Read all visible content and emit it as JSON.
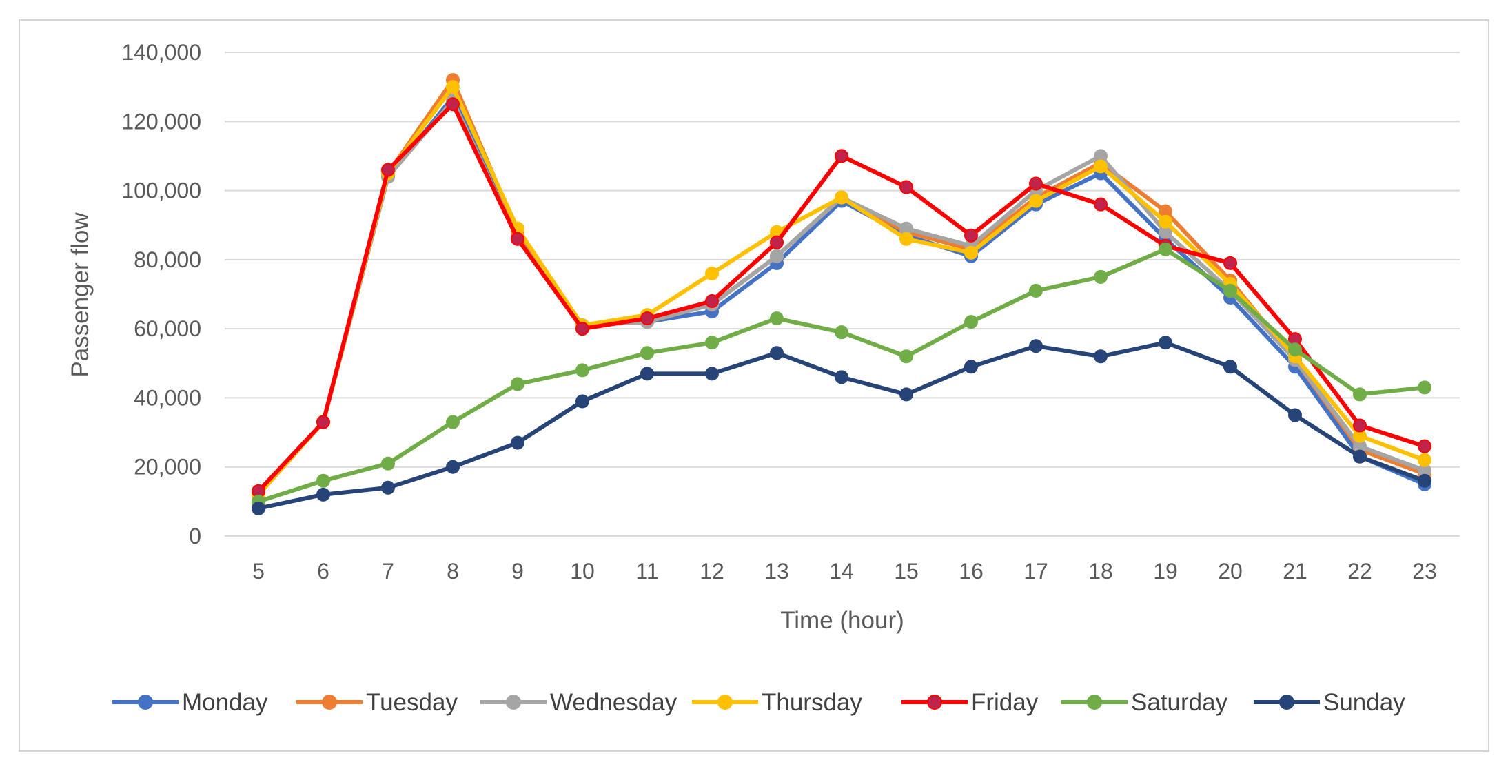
{
  "chart_data": {
    "type": "line",
    "title": "",
    "xlabel": "Time (hour)",
    "ylabel": "Passenger flow",
    "ylim": [
      0,
      140000
    ],
    "yticks": [
      0,
      20000,
      40000,
      60000,
      80000,
      100000,
      120000,
      140000
    ],
    "ytick_labels": [
      "0",
      "20,000",
      "40,000",
      "60,000",
      "80,000",
      "100,000",
      "120,000",
      "140,000"
    ],
    "grid": true,
    "legend_position": "bottom",
    "x": [
      "5",
      "6",
      "7",
      "8",
      "9",
      "10",
      "11",
      "12",
      "13",
      "14",
      "15",
      "16",
      "17",
      "18",
      "19",
      "20",
      "21",
      "22",
      "23"
    ],
    "series": [
      {
        "name": "Monday",
        "color": "#4472c4",
        "marker_fill": "#4472c4",
        "values": [
          12000,
          33000,
          104000,
          127000,
          87000,
          61000,
          62000,
          65000,
          79000,
          97000,
          87000,
          81000,
          96000,
          105000,
          86000,
          69000,
          49000,
          23000,
          15000
        ]
      },
      {
        "name": "Tuesday",
        "color": "#ed7d31",
        "marker_fill": "#ed7d31",
        "values": [
          12000,
          33000,
          105000,
          132000,
          88000,
          61000,
          62000,
          67000,
          81000,
          98000,
          88000,
          83000,
          98000,
          108000,
          94000,
          74000,
          51000,
          25000,
          18000
        ]
      },
      {
        "name": "Wednesday",
        "color": "#a5a5a5",
        "marker_fill": "#a5a5a5",
        "values": [
          12000,
          33000,
          104000,
          126000,
          86000,
          61000,
          62000,
          67000,
          81000,
          98000,
          89000,
          84000,
          100000,
          110000,
          88000,
          71000,
          51000,
          26000,
          19000
        ]
      },
      {
        "name": "Thursday",
        "color": "#ffc000",
        "marker_fill": "#ffc000",
        "values": [
          12000,
          33000,
          105000,
          130000,
          89000,
          61000,
          64000,
          76000,
          88000,
          98000,
          86000,
          82000,
          97000,
          107000,
          91000,
          73000,
          52000,
          29000,
          22000
        ]
      },
      {
        "name": "Friday",
        "color": "#ff0000",
        "marker_fill": "#c0244c",
        "label_color": "#ff0000",
        "values": [
          13000,
          33000,
          106000,
          125000,
          86000,
          60000,
          63000,
          68000,
          85000,
          110000,
          101000,
          87000,
          102000,
          96000,
          84000,
          79000,
          57000,
          32000,
          26000
        ]
      },
      {
        "name": "Saturday",
        "color": "#70ad47",
        "marker_fill": "#70ad47",
        "values": [
          10000,
          16000,
          21000,
          33000,
          44000,
          48000,
          53000,
          56000,
          63000,
          59000,
          52000,
          62000,
          71000,
          75000,
          83000,
          71000,
          54000,
          41000,
          43000
        ]
      },
      {
        "name": "Sunday",
        "color": "#264478",
        "marker_fill": "#264478",
        "values": [
          8000,
          12000,
          14000,
          20000,
          27000,
          39000,
          47000,
          47000,
          53000,
          46000,
          41000,
          49000,
          55000,
          52000,
          56000,
          49000,
          35000,
          23000,
          16000
        ]
      }
    ]
  }
}
